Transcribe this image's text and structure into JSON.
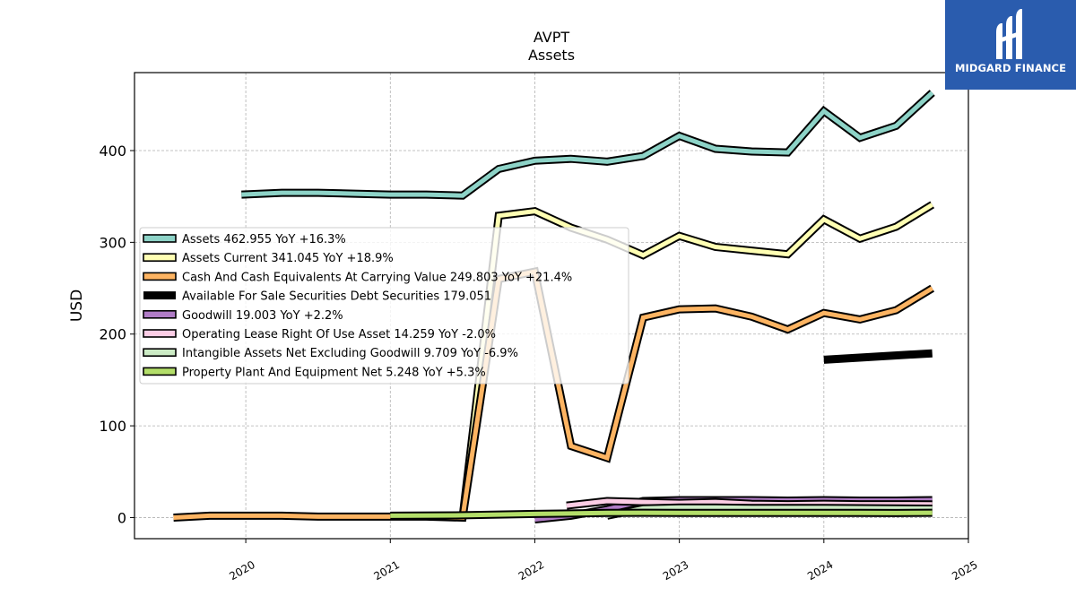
{
  "chart_data": {
    "type": "line",
    "title": "AVPT",
    "subtitle": "Assets",
    "ylabel": "USD",
    "xlabel": "",
    "ylim": [
      -23,
      485
    ],
    "xlim": [
      2019.23,
      2025.0
    ],
    "yticks": [
      0,
      100,
      200,
      300,
      400
    ],
    "xticks": [
      "2020",
      "2021",
      "2022",
      "2023",
      "2024",
      "2025"
    ],
    "grid": true,
    "legend_position": "center-left",
    "series": [
      {
        "name": "Assets",
        "legend": "Assets  462.955 YoY +16.3%",
        "color": "#8dd3c7",
        "width": 5,
        "points": [
          [
            2019.97,
            352
          ],
          [
            2020.25,
            354
          ],
          [
            2020.5,
            354
          ],
          [
            2020.75,
            353
          ],
          [
            2021.0,
            352
          ],
          [
            2021.25,
            352
          ],
          [
            2021.5,
            351
          ],
          [
            2021.75,
            380
          ],
          [
            2022.0,
            389
          ],
          [
            2022.25,
            391
          ],
          [
            2022.5,
            388
          ],
          [
            2022.75,
            394
          ],
          [
            2023.0,
            416
          ],
          [
            2023.25,
            402
          ],
          [
            2023.5,
            399
          ],
          [
            2023.75,
            398
          ],
          [
            2024.0,
            443
          ],
          [
            2024.25,
            414
          ],
          [
            2024.5,
            427
          ],
          [
            2024.75,
            463
          ]
        ]
      },
      {
        "name": "Assets Current",
        "legend": "Assets Current  341.045 YoY +18.9%",
        "color": "#ffffb3",
        "width": 5,
        "points": [
          [
            2021.5,
            0
          ],
          [
            2021.75,
            329
          ],
          [
            2022.0,
            334
          ],
          [
            2022.25,
            316
          ],
          [
            2022.5,
            303
          ],
          [
            2022.75,
            286
          ],
          [
            2023.0,
            307
          ],
          [
            2023.25,
            295
          ],
          [
            2023.5,
            291
          ],
          [
            2023.75,
            287
          ],
          [
            2024.0,
            325
          ],
          [
            2024.25,
            304
          ],
          [
            2024.5,
            317
          ],
          [
            2024.75,
            341
          ]
        ]
      },
      {
        "name": "Cash And Cash Equivalents At Carrying Value",
        "legend": "Cash And Cash Equivalents At Carrying Value  249.803 YoY +21.4%",
        "color": "#fdb462",
        "width": 5,
        "points": [
          [
            2019.5,
            0
          ],
          [
            2019.75,
            2
          ],
          [
            2020.0,
            2
          ],
          [
            2020.25,
            2
          ],
          [
            2020.5,
            1
          ],
          [
            2020.75,
            1
          ],
          [
            2021.0,
            1
          ],
          [
            2021.25,
            1
          ],
          [
            2021.5,
            0
          ],
          [
            2021.75,
            260
          ],
          [
            2022.0,
            268
          ],
          [
            2022.25,
            78
          ],
          [
            2022.5,
            65
          ],
          [
            2022.75,
            218
          ],
          [
            2023.0,
            227
          ],
          [
            2023.25,
            228
          ],
          [
            2023.5,
            219
          ],
          [
            2023.75,
            205
          ],
          [
            2024.0,
            223
          ],
          [
            2024.25,
            216
          ],
          [
            2024.5,
            226
          ],
          [
            2024.75,
            250
          ]
        ]
      },
      {
        "name": "Available For Sale Securities Debt Securities",
        "legend": "Available For Sale Securities Debt Securities  179.051",
        "color": "#000000",
        "width": 9,
        "plain": true,
        "points": [
          [
            2024.0,
            172
          ],
          [
            2024.75,
            179
          ]
        ]
      },
      {
        "name": "Goodwill",
        "legend": "Goodwill  19.003 YoY +2.2%",
        "color": "#b07cc6",
        "width": 5,
        "points": [
          [
            2022.0,
            -2
          ],
          [
            2022.25,
            2
          ],
          [
            2022.5,
            9
          ],
          [
            2022.75,
            18
          ],
          [
            2023.0,
            19
          ],
          [
            2023.25,
            19
          ],
          [
            2023.5,
            19
          ],
          [
            2023.75,
            18.5
          ],
          [
            2024.0,
            19
          ],
          [
            2024.25,
            18.5
          ],
          [
            2024.5,
            18.5
          ],
          [
            2024.75,
            19
          ]
        ]
      },
      {
        "name": "Operating Lease Right Of Use Asset",
        "legend": "Operating Lease Right Of Use Asset  14.259 YoY -2.0%",
        "color": "#fccde5",
        "width": 5,
        "points": [
          [
            2022.22,
            13
          ],
          [
            2022.5,
            18
          ],
          [
            2022.75,
            17
          ],
          [
            2023.0,
            16
          ],
          [
            2023.25,
            17
          ],
          [
            2023.5,
            15
          ],
          [
            2023.75,
            14.5
          ],
          [
            2024.0,
            15
          ],
          [
            2024.25,
            14.5
          ],
          [
            2024.5,
            14.5
          ],
          [
            2024.75,
            14.3
          ]
        ]
      },
      {
        "name": "Intangible Assets Net Excluding Goodwill",
        "legend": "Intangible Assets Net Excluding Goodwill  9.709 YoY -6.9%",
        "color": "#ccebc5",
        "width": 5,
        "points": [
          [
            2022.5,
            2
          ],
          [
            2022.75,
            10
          ],
          [
            2023.0,
            11
          ],
          [
            2023.25,
            11
          ],
          [
            2023.5,
            10.5
          ],
          [
            2023.75,
            10.5
          ],
          [
            2024.0,
            10.4
          ],
          [
            2024.25,
            10.2
          ],
          [
            2024.5,
            10
          ],
          [
            2024.75,
            9.7
          ]
        ]
      },
      {
        "name": "Property Plant And Equipment Net",
        "legend": "Property Plant And Equipment Net  5.248 YoY +5.3%",
        "color": "#b3de69",
        "width": 5,
        "points": [
          [
            2021.0,
            2
          ],
          [
            2021.5,
            2.5
          ],
          [
            2022.0,
            4
          ],
          [
            2022.5,
            5
          ],
          [
            2022.75,
            5.2
          ],
          [
            2023.0,
            5
          ],
          [
            2023.25,
            5
          ],
          [
            2023.5,
            5
          ],
          [
            2023.75,
            5
          ],
          [
            2024.0,
            5
          ],
          [
            2024.25,
            5
          ],
          [
            2024.5,
            4.9
          ],
          [
            2024.75,
            5.2
          ]
        ]
      }
    ]
  },
  "logo": {
    "text": "MIDGARD FINANCE",
    "mark": "MIDGARD FINANCE logo mark"
  }
}
